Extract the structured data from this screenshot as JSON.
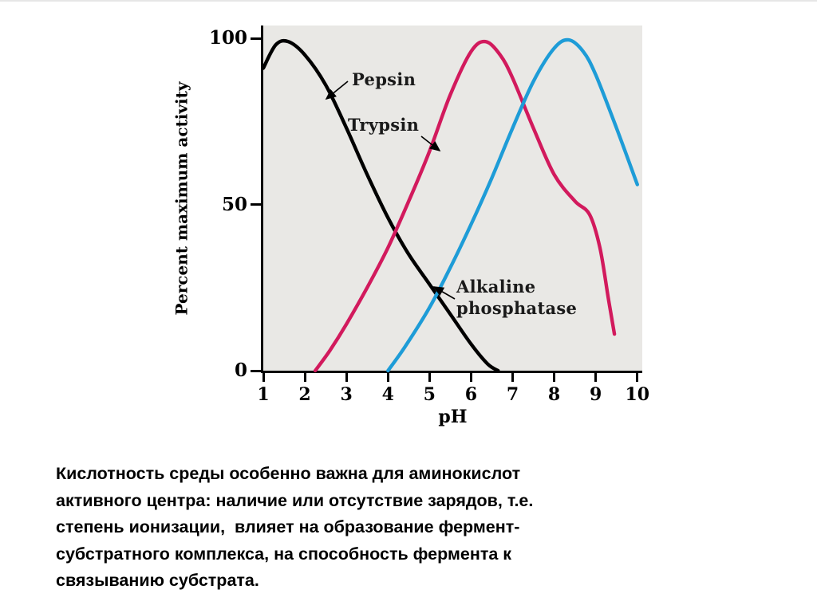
{
  "chart_data": {
    "type": "line",
    "title": "",
    "xlabel": "pH",
    "ylabel": "Percent maximum activity",
    "xlim": [
      1,
      10
    ],
    "ylim": [
      0,
      100
    ],
    "x_ticks": [
      1,
      2,
      3,
      4,
      5,
      6,
      7,
      8,
      9,
      10
    ],
    "y_ticks": [
      0,
      50,
      100
    ],
    "grid": false,
    "plot_background": "#e9e8e5",
    "series": [
      {
        "name": "Pepsin",
        "color": "#000000",
        "points": [
          [
            1,
            91
          ],
          [
            1.3,
            98
          ],
          [
            1.6,
            99
          ],
          [
            2,
            95
          ],
          [
            2.5,
            86
          ],
          [
            3,
            73
          ],
          [
            3.5,
            59
          ],
          [
            4,
            46
          ],
          [
            4.5,
            35
          ],
          [
            5,
            26
          ],
          [
            5.5,
            17
          ],
          [
            6,
            8
          ],
          [
            6.4,
            2
          ],
          [
            6.65,
            0
          ]
        ]
      },
      {
        "name": "Trypsin",
        "color": "#d21a5d",
        "points": [
          [
            2.25,
            0
          ],
          [
            2.6,
            6
          ],
          [
            3,
            14
          ],
          [
            3.5,
            25
          ],
          [
            4,
            37
          ],
          [
            4.5,
            51
          ],
          [
            5,
            66
          ],
          [
            5.5,
            83
          ],
          [
            6,
            96
          ],
          [
            6.35,
            99
          ],
          [
            6.7,
            95
          ],
          [
            7,
            88
          ],
          [
            7.5,
            73
          ],
          [
            8,
            59
          ],
          [
            8.5,
            51
          ],
          [
            8.85,
            47
          ],
          [
            9.1,
            37
          ],
          [
            9.3,
            22
          ],
          [
            9.45,
            11
          ]
        ]
      },
      {
        "name": "Alkaline phosphatase",
        "color": "#1e9cd7",
        "points": [
          [
            4,
            0
          ],
          [
            4.4,
            7
          ],
          [
            5,
            19
          ],
          [
            5.5,
            31
          ],
          [
            6,
            44
          ],
          [
            6.5,
            58
          ],
          [
            7,
            73
          ],
          [
            7.5,
            87
          ],
          [
            8,
            97
          ],
          [
            8.35,
            99.5
          ],
          [
            8.7,
            96
          ],
          [
            9,
            89
          ],
          [
            9.5,
            73
          ],
          [
            10,
            56
          ]
        ]
      }
    ],
    "annotations": [
      {
        "label": "Pepsin"
      },
      {
        "label": "Trypsin"
      },
      {
        "label": "Alkaline phosphatase"
      }
    ]
  },
  "caption": {
    "lines": [
      "Кислотность среды особенно важна для аминокислот",
      "активного центра: наличие или отсутствие зарядов, т.е.",
      "степень ионизации,  влияет на образование фермент-",
      "субстратного комплекса, на способность фермента к",
      "связыванию субстрата."
    ]
  }
}
